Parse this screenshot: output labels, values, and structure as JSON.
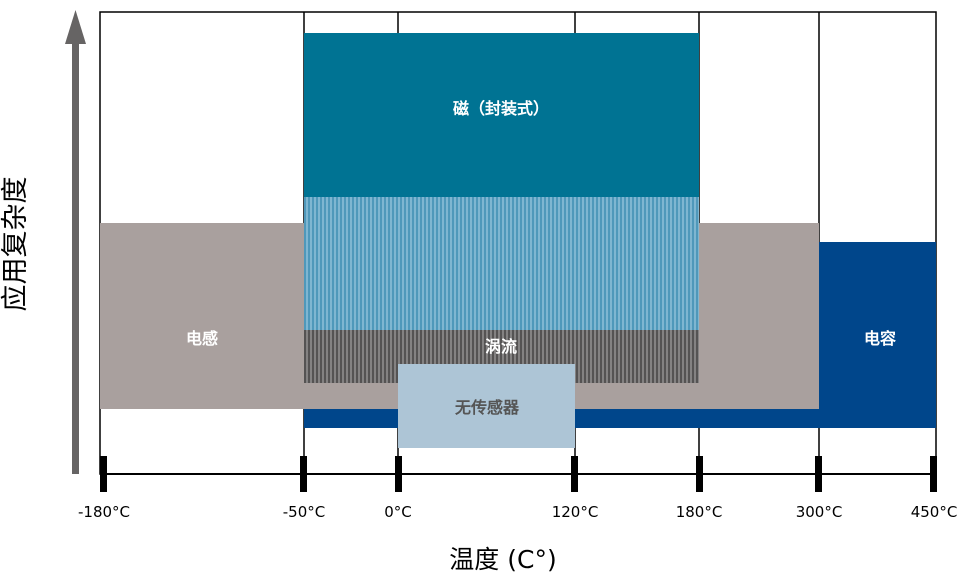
{
  "axes": {
    "x_label": "温度 (C°)",
    "y_label": "应用复杂度",
    "ticks": [
      "-180°C",
      "-50°C",
      "0°C",
      "120°C",
      "180°C",
      "300°C",
      "450°C"
    ]
  },
  "bands": {
    "magnetic": {
      "label": "磁（封装式）",
      "color": "#007393",
      "range": [
        "-50°C",
        "180°C"
      ]
    },
    "inductive": {
      "label": "电感",
      "color": "#A9A09E",
      "range": [
        "-180°C",
        "300°C"
      ]
    },
    "eddy_current": {
      "label": "涡流",
      "color": "#4D9FBE",
      "range": [
        "-50°C",
        "180°C"
      ]
    },
    "capacitive": {
      "label": "电容",
      "color": "#00468B",
      "range": [
        "-50°C",
        "450°C"
      ]
    },
    "sensorless": {
      "label": "无传感器",
      "color": "#ADC5D6",
      "range": [
        "0°C",
        "120°C"
      ]
    }
  },
  "colors": {
    "axis": "#000000",
    "arrow": "#666464",
    "grid": "#000000",
    "eddy_dark": "#555353"
  }
}
